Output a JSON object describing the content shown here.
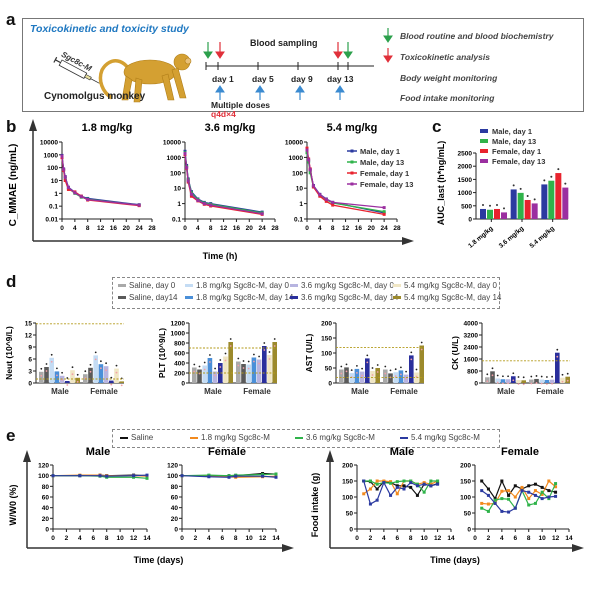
{
  "panels": {
    "a": {
      "letter": "a",
      "title": "Toxicokinetic and toxicity study",
      "syringe_label": "Sgc8c-M",
      "animal_label": "Cynomolgus monkey",
      "timeline_title": "Blood sampling",
      "days": [
        "day 1",
        "day 5",
        "day 9",
        "day 13"
      ],
      "dosing_label": "Multiple doses",
      "dosing_schedule": "q4d×4",
      "legend": [
        {
          "arrow": "green-down",
          "label": "Blood routine and blood biochemistry"
        },
        {
          "arrow": "red-down",
          "label": "Toxicokinetic analysis"
        },
        {
          "arrow": "none",
          "label": "Body weight monitoring"
        },
        {
          "arrow": "none",
          "label": "Food intake monitoring"
        }
      ],
      "colors": {
        "green": "#2ca04c",
        "red": "#e0303a",
        "blue": "#3a8ad0",
        "title": "#1f78c1",
        "dose": "#e0303a",
        "monkey": "#d4a032"
      }
    },
    "b": {
      "letter": "b"
    },
    "c": {
      "letter": "c"
    },
    "d": {
      "letter": "d"
    },
    "e": {
      "letter": "e"
    }
  },
  "chart_data": [
    {
      "id": "b",
      "type": "line",
      "ylabel": "C_MMAE (ng/mL)",
      "xlabel": "Time (h)",
      "yscale": "log",
      "legend": [
        "Male, day 1",
        "Male, day 13",
        "Female, day 1",
        "Female, day 13"
      ],
      "legend_colors": [
        "#2b3aa0",
        "#2fb34a",
        "#e8232e",
        "#9b2fa0"
      ],
      "subplots": [
        {
          "title": "1.8 mg/kg",
          "ylim": [
            0.01,
            10000
          ],
          "yticks": [
            "0.01",
            "0.1",
            "1",
            "10",
            "100",
            "1000",
            "10000"
          ],
          "xticks": [
            0,
            4,
            8,
            12,
            16,
            20,
            24,
            28
          ],
          "x": [
            0,
            0.5,
            1,
            2,
            4,
            6,
            8,
            24
          ],
          "series": [
            {
              "name": "Male, day 1",
              "values": [
                900,
                80,
                20,
                3,
                1.2,
                0.6,
                0.4,
                0.13
              ]
            },
            {
              "name": "Male, day 13",
              "values": [
                700,
                70,
                15,
                2.5,
                1.0,
                0.5,
                0.35,
                0.12
              ]
            },
            {
              "name": "Female, day 1",
              "values": [
                600,
                60,
                10,
                2,
                1.3,
                0.6,
                0.3,
                0.11
              ]
            },
            {
              "name": "Female, day 13",
              "values": [
                800,
                75,
                18,
                2.8,
                1.1,
                0.55,
                0.33,
                0.12
              ]
            }
          ]
        },
        {
          "title": "3.6 mg/kg",
          "ylim": [
            0.1,
            10000
          ],
          "yticks": [
            "0.1",
            "1",
            "10",
            "100",
            "1000",
            "10000"
          ],
          "xticks": [
            0,
            4,
            8,
            12,
            16,
            20,
            24,
            28
          ],
          "x": [
            0,
            0.5,
            1,
            2,
            4,
            6,
            8,
            24
          ],
          "series": [
            {
              "name": "Male, day 1",
              "values": [
                2500,
                300,
                40,
                6,
                2,
                1.2,
                1.0,
                0.28
              ]
            },
            {
              "name": "Male, day 13",
              "values": [
                2000,
                250,
                35,
                5,
                1.8,
                1.1,
                0.9,
                0.25
              ]
            },
            {
              "name": "Female, day 1",
              "values": [
                1500,
                200,
                25,
                3,
                1.5,
                0.9,
                0.7,
                0.2
              ]
            },
            {
              "name": "Female, day 13",
              "values": [
                1800,
                220,
                30,
                4,
                1.6,
                1.0,
                0.8,
                0.22
              ]
            }
          ]
        },
        {
          "title": "5.4 mg/kg",
          "ylim": [
            0.1,
            10000
          ],
          "yticks": [
            "0.1",
            "1",
            "10",
            "100",
            "1000",
            "10000"
          ],
          "xticks": [
            0,
            4,
            8,
            12,
            16,
            20,
            24,
            28
          ],
          "x": [
            0,
            0.5,
            1,
            2,
            4,
            6,
            8,
            24
          ],
          "series": [
            {
              "name": "Male, day 1",
              "values": [
                2500,
                600,
                150,
                15,
                4,
                2,
                1.2,
                0.25
              ]
            },
            {
              "name": "Male, day 13",
              "values": [
                2000,
                500,
                100,
                12,
                3.5,
                1.8,
                1.1,
                0.3
              ]
            },
            {
              "name": "Female, day 1",
              "values": [
                4000,
                800,
                180,
                12,
                3,
                1.4,
                0.8,
                0.2
              ]
            },
            {
              "name": "Female, day 13",
              "values": [
                3000,
                700,
                160,
                14,
                3.8,
                1.9,
                1.2,
                0.55
              ]
            }
          ]
        }
      ]
    },
    {
      "id": "c",
      "type": "bar",
      "ylabel": "AUC_last (h*ng/mL)",
      "ylim": [
        0,
        2500
      ],
      "yticks": [
        0,
        500,
        1000,
        1500,
        2000,
        2500
      ],
      "categories": [
        "1.8 mg/kg",
        "3.6 mg/kg",
        "5.4 mg/kg"
      ],
      "series": [
        {
          "name": "Male, day 1",
          "color": "#2b3aa0",
          "values": [
            380,
            1120,
            1310
          ]
        },
        {
          "name": "Male, day 13",
          "color": "#2fb34a",
          "values": [
            350,
            990,
            1450
          ]
        },
        {
          "name": "Female, day 1",
          "color": "#e8232e",
          "values": [
            380,
            720,
            1740
          ]
        },
        {
          "name": "Female, day 13",
          "color": "#9b2fa0",
          "values": [
            250,
            590,
            1190
          ]
        }
      ]
    },
    {
      "id": "d",
      "type": "bar",
      "legend": [
        {
          "name": "Saline, day 0",
          "color": "#a9a9a9"
        },
        {
          "name": "Saline, day14",
          "color": "#5a5a5a"
        },
        {
          "name": "1.8 mg/kg Sgc8c-M, day 0",
          "color": "#c4dcf4"
        },
        {
          "name": "1.8 mg/kg Sgc8c-M, day 14",
          "color": "#4a8fd8"
        },
        {
          "name": "3.6 mg/kg Sgc8c-M, day 0",
          "color": "#b7b4e0"
        },
        {
          "name": "3.6 mg/kg Sgc8c-M, day 14",
          "color": "#2a2f9c"
        },
        {
          "name": "5.4 mg/kg Sgc8c-M, day 0",
          "color": "#f0e6c4"
        },
        {
          "name": "5.4 mg/kg Sgc8c-M, day 14",
          "color": "#9c8a2c"
        }
      ],
      "categories": [
        "Male",
        "Female"
      ],
      "subplots": [
        {
          "ylabel": "Neut (10^9/L)",
          "ylim": [
            0,
            15
          ],
          "yticks": [
            0,
            3,
            6,
            9,
            12,
            15
          ],
          "ref_lines": [
            1,
            14.8
          ],
          "values": {
            "Male": [
              2.8,
              4.0,
              6.3,
              2.9,
              1.8,
              0.5,
              3.2,
              1.3
            ],
            "Female": [
              2.2,
              3.8,
              6.9,
              4.7,
              4.2,
              0.6,
              3.6,
              0.4
            ]
          }
        },
        {
          "ylabel": "PLT (10^9/L)",
          "ylim": [
            0,
            1200
          ],
          "yticks": [
            0,
            200,
            400,
            600,
            800,
            1000,
            1200
          ],
          "ref_lines": [
            200,
            700
          ],
          "values": {
            "Male": [
              310,
              270,
              350,
              500,
              230,
              400,
              530,
              820
            ],
            "Female": [
              430,
              380,
              370,
              510,
              470,
              740,
              560,
              820
            ]
          }
        },
        {
          "ylabel": "AST (U/L)",
          "ylim": [
            0,
            200
          ],
          "yticks": [
            0,
            50,
            100,
            150,
            200
          ],
          "ref_lines": [
            18,
            118
          ],
          "values": {
            "Male": [
              45,
              52,
              33,
              47,
              38,
              82,
              40,
              50
            ],
            "Female": [
              45,
              32,
              36,
              42,
              28,
              92,
              35,
              125
            ]
          }
        },
        {
          "ylabel": "CK (U/L)",
          "ylim": [
            0,
            4000
          ],
          "yticks": [
            0,
            800,
            1600,
            2400,
            3200,
            4000
          ],
          "ref_lines": [
            1480
          ],
          "values": {
            "Male": [
              380,
              780,
              300,
              250,
              250,
              450,
              200,
              180
            ],
            "Female": [
              230,
              270,
              230,
              200,
              220,
              2020,
              350,
              420
            ]
          }
        }
      ]
    },
    {
      "id": "e",
      "type": "line",
      "legend": [
        {
          "name": "Saline",
          "color": "#111111"
        },
        {
          "name": "1.8 mg/kg Sgc8c-M",
          "color": "#f28a1e"
        },
        {
          "name": "3.6 mg/kg Sgc8c-M",
          "color": "#2fb34a"
        },
        {
          "name": "5.4 mg/kg Sgc8c-M",
          "color": "#2b3aa0"
        }
      ],
      "weight": {
        "ylabel": "W/W0 (%)",
        "xlabel": "Time (days)",
        "ylim": [
          0,
          120
        ],
        "yticks": [
          0,
          20,
          40,
          60,
          80,
          100,
          120
        ],
        "xlim": [
          0,
          14
        ],
        "xticks": [
          0,
          2,
          4,
          6,
          8,
          10,
          12,
          14
        ],
        "x": [
          0,
          4,
          7,
          8,
          12,
          14
        ],
        "subplots": [
          {
            "title": "Male",
            "series": [
              [
                100,
                100,
                101,
                100,
                101,
                100
              ],
              [
                100,
                101,
                101,
                100,
                100,
                99
              ],
              [
                100,
                100,
                99,
                97,
                97,
                95
              ],
              [
                100,
                100,
                100,
                99,
                100,
                101
              ]
            ]
          },
          {
            "title": "Female",
            "series": [
              [
                100,
                100,
                100,
                100,
                104,
                103
              ],
              [
                100,
                99,
                98,
                97,
                98,
                99
              ],
              [
                100,
                101,
                100,
                101,
                102,
                103
              ],
              [
                100,
                98,
                97,
                99,
                99,
                97
              ]
            ]
          }
        ]
      },
      "food": {
        "ylabel": "Food intake (g)",
        "xlabel": "Time (days)",
        "ylim": [
          0,
          200
        ],
        "yticks": [
          0,
          50,
          100,
          150,
          200
        ],
        "xlim": [
          0,
          14
        ],
        "xticks": [
          0,
          2,
          4,
          6,
          8,
          10,
          12,
          14
        ],
        "x": [
          1,
          2,
          3,
          4,
          5,
          6,
          7,
          8,
          9,
          10,
          11,
          12
        ],
        "subplots": [
          {
            "title": "Male",
            "series": [
              [
                150,
                148,
                125,
                148,
                145,
                135,
                135,
                130,
                105,
                140,
                135,
                142
              ],
              [
                110,
                125,
                150,
                150,
                148,
                110,
                150,
                150,
                140,
                145,
                140,
                150
              ],
              [
                150,
                150,
                140,
                145,
                143,
                148,
                150,
                150,
                140,
                115,
                150,
                150
              ],
              [
                150,
                78,
                90,
                145,
                105,
                130,
                125,
                145,
                135,
                140,
                135,
                140
              ]
            ]
          },
          {
            "title": "Female",
            "series": [
              [
                150,
                125,
                95,
                150,
                105,
                135,
                125,
                135,
                140,
                130,
                120,
                115
              ],
              [
                80,
                78,
                80,
                118,
                120,
                100,
                130,
                95,
                120,
                108,
                150,
                132
              ],
              [
                65,
                55,
                90,
                95,
                93,
                65,
                120,
                75,
                80,
                115,
                95,
                142
              ],
              [
                120,
                105,
                80,
                55,
                53,
                65,
                120,
                115,
                105,
                95,
                100,
                102
              ]
            ]
          }
        ]
      }
    }
  ]
}
